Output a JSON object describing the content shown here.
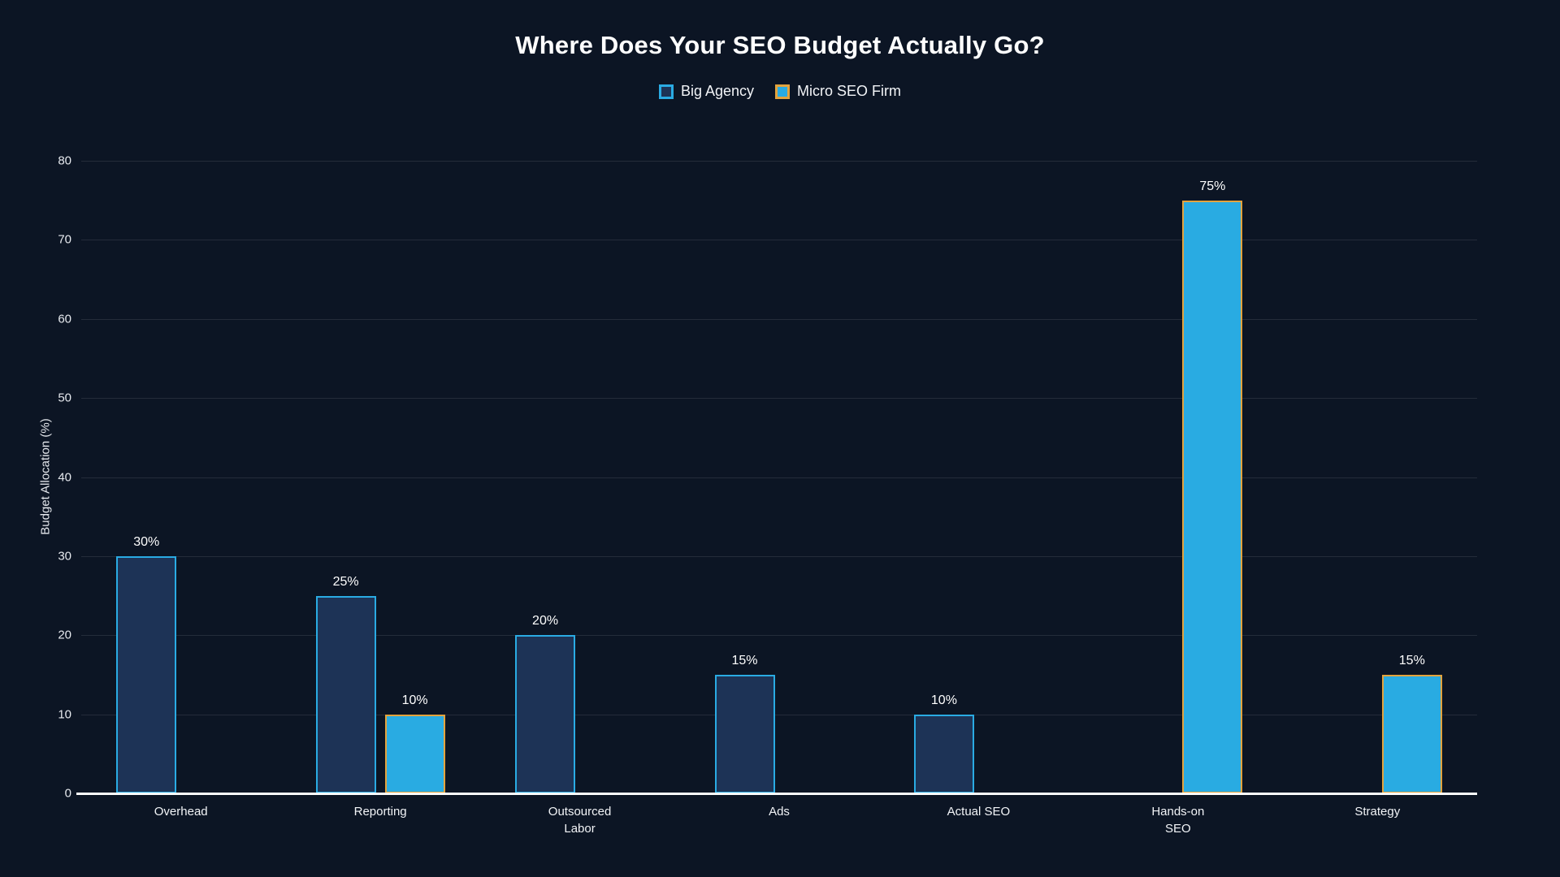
{
  "title": "Where Does Your SEO Budget Actually Go?",
  "colors": {
    "background": "#0c1524",
    "big_agency_fill": "#1d3356",
    "big_agency_border": "#2aabe3",
    "micro_firm_fill": "#29abe2",
    "micro_firm_border": "#e3a33d",
    "gridline": "rgba(255,255,255,0.10)",
    "axis_line": "#ffffff",
    "text": "#ffffff"
  },
  "chart_data": {
    "type": "bar",
    "title": "Where Does Your SEO Budget Actually Go?",
    "xlabel": "",
    "ylabel": "Budget Allocation (%)",
    "ylim": [
      0,
      80
    ],
    "yticks": [
      0,
      10,
      20,
      30,
      40,
      50,
      60,
      70,
      80
    ],
    "grid": true,
    "legend_position": "top",
    "categories": [
      "Overhead",
      "Reporting",
      "Outsourced\nLabor",
      "Ads",
      "Actual SEO",
      "Hands-on\nSEO",
      "Strategy"
    ],
    "series": [
      {
        "name": "Big Agency",
        "fill": "#1d3356",
        "border": "#2aabe3",
        "values": [
          30,
          25,
          20,
          15,
          10,
          null,
          null
        ]
      },
      {
        "name": "Micro SEO Firm",
        "fill": "#29abe2",
        "border": "#e3a33d",
        "values": [
          null,
          10,
          null,
          null,
          null,
          75,
          15
        ]
      }
    ],
    "data_labels": [
      "30%",
      "25%",
      "20%",
      "15%",
      "10%",
      "75%",
      "15%"
    ],
    "data_label_format": "{v}%"
  }
}
